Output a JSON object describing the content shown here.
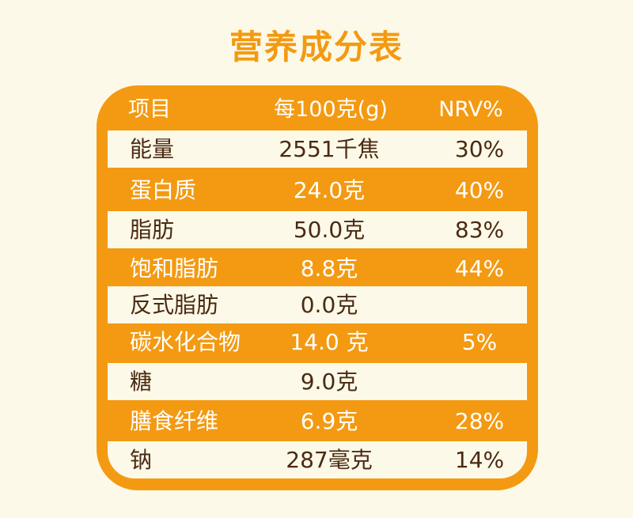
{
  "title": "营养成分表",
  "header": {
    "item": "项目",
    "per100": "每100克(g)",
    "nrv": "NRV%"
  },
  "rows": [
    {
      "name": "能量",
      "value": "2551千焦",
      "nrv": "30%"
    },
    {
      "name": "蛋白质",
      "value": "24.0克",
      "nrv": "40%"
    },
    {
      "name": "脂肪",
      "value": "50.0克",
      "nrv": "83%"
    },
    {
      "name": "饱和脂肪",
      "value": "8.8克",
      "nrv": "44%"
    },
    {
      "name": "反式脂肪",
      "value": "0.0克",
      "nrv": ""
    },
    {
      "name": "碳水化合物",
      "value": "14.0 克",
      "nrv": "5%"
    },
    {
      "name": "糖",
      "value": "9.0克",
      "nrv": ""
    },
    {
      "name": "膳食纤维",
      "value": "6.9克",
      "nrv": "28%"
    },
    {
      "name": "钠",
      "value": "287毫克",
      "nrv": "14%"
    }
  ],
  "colors": {
    "accent": "#f39a12",
    "background": "#fdf9e8",
    "text_dark": "#4a2a12",
    "text_light": "#ffffff"
  }
}
